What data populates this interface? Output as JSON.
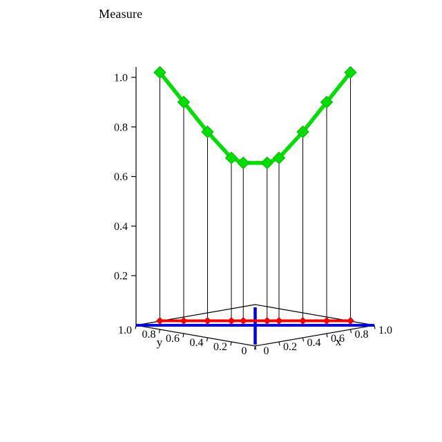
{
  "chart_data": {
    "type": "line",
    "projection": "3d",
    "title": "Measure",
    "curve": {
      "name": "measure-curve",
      "color": "#00dd00",
      "marker": "diamond",
      "t": [
        0.1,
        0.2,
        0.3,
        0.4,
        0.45,
        0.55,
        0.6,
        0.7,
        0.8,
        0.9
      ],
      "values": [
        1.02,
        0.9,
        0.78,
        0.675,
        0.655,
        0.655,
        0.675,
        0.78,
        0.9,
        1.02
      ]
    },
    "base_projection": {
      "name": "base-projection",
      "color": "#ee0000",
      "marker": "diamond",
      "height": 0
    },
    "base_axes_color": "#0000ee",
    "frame_color": "#000000",
    "drop_lines": true,
    "legend": "none",
    "axes": {
      "x": {
        "label": "x",
        "range": [
          0,
          1
        ],
        "ticks": [
          "0",
          "0.2",
          "0.4",
          "0.6",
          "0.8",
          "1.0"
        ]
      },
      "y": {
        "label": "y",
        "range": [
          0,
          1
        ],
        "ticks": [
          "1.0",
          "0.8",
          "0.6",
          "0.4",
          "0.2",
          "0"
        ]
      },
      "z": {
        "label": "Measure",
        "range": [
          0,
          1.05
        ],
        "ticks": [
          "0.2",
          "0.4",
          "0.6",
          "0.8",
          "1.0"
        ]
      }
    }
  }
}
